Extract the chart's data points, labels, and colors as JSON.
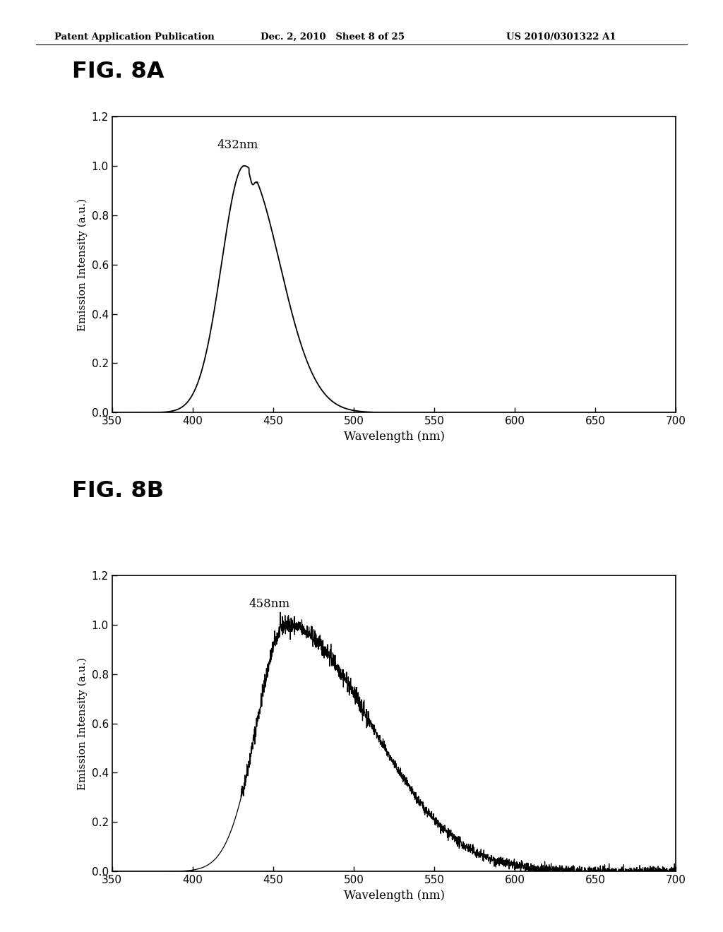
{
  "header_left": "Patent Application Publication",
  "header_mid": "Dec. 2, 2010   Sheet 8 of 25",
  "header_right": "US 2010/0301322 A1",
  "fig_label_A": "FIG. 8A",
  "fig_label_B": "FIG. 8B",
  "xlabel": "Wavelength (nm)",
  "ylabel": "Emission Intensity (a.u.)",
  "xlim": [
    350,
    700
  ],
  "ylim": [
    0,
    1.2
  ],
  "xticks": [
    350,
    400,
    450,
    500,
    550,
    600,
    650,
    700
  ],
  "yticks": [
    0,
    0.2,
    0.4,
    0.6,
    0.8,
    1.0,
    1.2
  ],
  "annotation_A": "432nm",
  "annotation_B": "458nm",
  "peak_A": 432,
  "peak_B": 458,
  "line_color": "#000000",
  "background_color": "#ffffff"
}
